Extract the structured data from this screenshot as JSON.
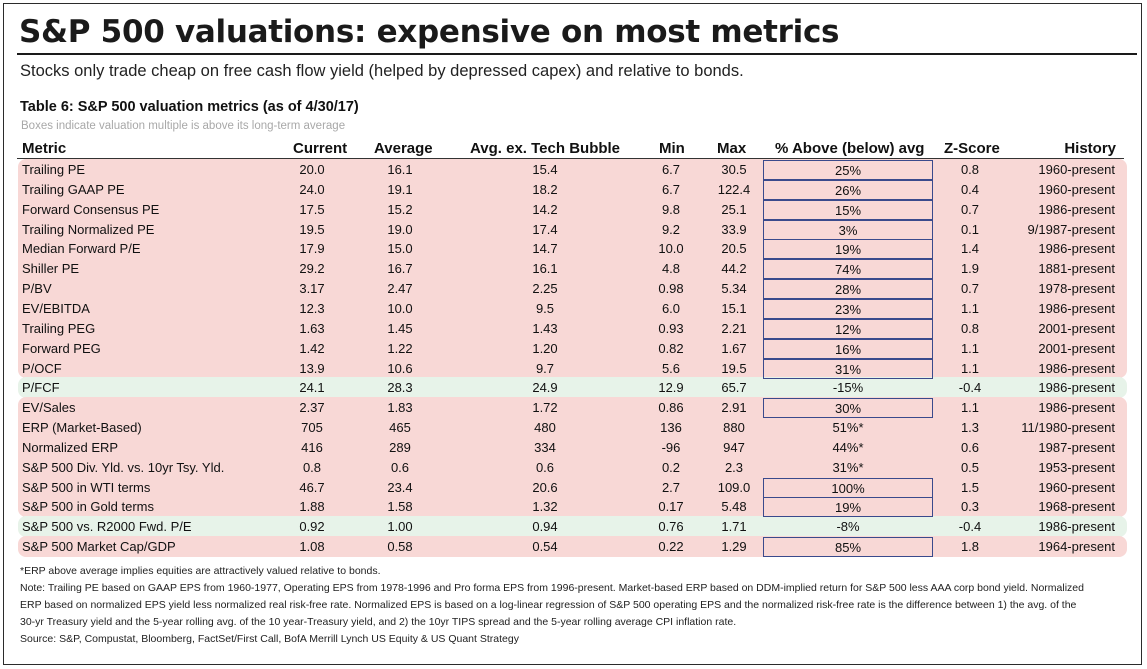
{
  "title": "S&P 500 valuations: expensive on most metrics",
  "subtitle": "Stocks only trade cheap on free cash flow yield (helped by depressed capex) and relative to bonds.",
  "table_title": "Table 6: S&P 500 valuation metrics (as of 4/30/17)",
  "table_note": "Boxes indicate valuation multiple is above its long-term average",
  "colors": {
    "pink_band": "#f8d8d6",
    "green_band": "#e7f3e9",
    "box_border": "#3a4a8c"
  },
  "headers": {
    "metric": "Metric",
    "current": "Current",
    "average": "Average",
    "avg_ex_tech": "Avg. ex. Tech Bubble",
    "min": "Min",
    "max": "Max",
    "pct": "% Above (below) avg",
    "z": "Z-Score",
    "history": "History"
  },
  "rows": [
    {
      "metric": "Trailing PE",
      "current": "20.0",
      "average": "16.1",
      "avg_ex": "15.4",
      "min": "6.7",
      "max": "30.5",
      "pct": "25%",
      "z": "0.8",
      "history": "1960-present",
      "boxed": true,
      "band": "pink"
    },
    {
      "metric": "Trailing GAAP PE",
      "current": "24.0",
      "average": "19.1",
      "avg_ex": "18.2",
      "min": "6.7",
      "max": "122.4",
      "pct": "26%",
      "z": "0.4",
      "history": "1960-present",
      "boxed": true,
      "band": "pink"
    },
    {
      "metric": "Forward Consensus PE",
      "current": "17.5",
      "average": "15.2",
      "avg_ex": "14.2",
      "min": "9.8",
      "max": "25.1",
      "pct": "15%",
      "z": "0.7",
      "history": "1986-present",
      "boxed": true,
      "band": "pink"
    },
    {
      "metric": "Trailing Normalized PE",
      "current": "19.5",
      "average": "19.0",
      "avg_ex": "17.4",
      "min": "9.2",
      "max": "33.9",
      "pct": "3%",
      "z": "0.1",
      "history": "9/1987-present",
      "boxed": true,
      "band": "pink"
    },
    {
      "metric": "Median Forward P/E",
      "current": "17.9",
      "average": "15.0",
      "avg_ex": "14.7",
      "min": "10.0",
      "max": "20.5",
      "pct": "19%",
      "z": "1.4",
      "history": "1986-present",
      "boxed": true,
      "band": "pink"
    },
    {
      "metric": "Shiller PE",
      "current": "29.2",
      "average": "16.7",
      "avg_ex": "16.1",
      "min": "4.8",
      "max": "44.2",
      "pct": "74%",
      "z": "1.9",
      "history": "1881-present",
      "boxed": true,
      "band": "pink"
    },
    {
      "metric": "P/BV",
      "current": "3.17",
      "average": "2.47",
      "avg_ex": "2.25",
      "min": "0.98",
      "max": "5.34",
      "pct": "28%",
      "z": "0.7",
      "history": "1978-present",
      "boxed": true,
      "band": "pink"
    },
    {
      "metric": "EV/EBITDA",
      "current": "12.3",
      "average": "10.0",
      "avg_ex": "9.5",
      "min": "6.0",
      "max": "15.1",
      "pct": "23%",
      "z": "1.1",
      "history": "1986-present",
      "boxed": true,
      "band": "pink"
    },
    {
      "metric": "Trailing PEG",
      "current": "1.63",
      "average": "1.45",
      "avg_ex": "1.43",
      "min": "0.93",
      "max": "2.21",
      "pct": "12%",
      "z": "0.8",
      "history": "2001-present",
      "boxed": true,
      "band": "pink"
    },
    {
      "metric": "Forward PEG",
      "current": "1.42",
      "average": "1.22",
      "avg_ex": "1.20",
      "min": "0.82",
      "max": "1.67",
      "pct": "16%",
      "z": "1.1",
      "history": "2001-present",
      "boxed": true,
      "band": "pink"
    },
    {
      "metric": "P/OCF",
      "current": "13.9",
      "average": "10.6",
      "avg_ex": "9.7",
      "min": "5.6",
      "max": "19.5",
      "pct": "31%",
      "z": "1.1",
      "history": "1986-present",
      "boxed": true,
      "band": "pink"
    },
    {
      "metric": "P/FCF",
      "current": "24.1",
      "average": "28.3",
      "avg_ex": "24.9",
      "min": "12.9",
      "max": "65.7",
      "pct": "-15%",
      "z": "-0.4",
      "history": "1986-present",
      "boxed": false,
      "band": "green"
    },
    {
      "metric": "EV/Sales",
      "current": "2.37",
      "average": "1.83",
      "avg_ex": "1.72",
      "min": "0.86",
      "max": "2.91",
      "pct": "30%",
      "z": "1.1",
      "history": "1986-present",
      "boxed": true,
      "band": "pink"
    },
    {
      "metric": "ERP (Market-Based)",
      "current": "705",
      "average": "465",
      "avg_ex": "480",
      "min": "136",
      "max": "880",
      "pct": "51%*",
      "z": "1.3",
      "history": "11/1980-present",
      "boxed": false,
      "band": "pink"
    },
    {
      "metric": "Normalized ERP",
      "current": "416",
      "average": "289",
      "avg_ex": "334",
      "min": "-96",
      "max": "947",
      "pct": "44%*",
      "z": "0.6",
      "history": "1987-present",
      "boxed": false,
      "band": "pink"
    },
    {
      "metric": "S&P 500 Div. Yld. vs. 10yr Tsy. Yld.",
      "current": "0.8",
      "average": "0.6",
      "avg_ex": "0.6",
      "min": "0.2",
      "max": "2.3",
      "pct": "31%*",
      "z": "0.5",
      "history": "1953-present",
      "boxed": false,
      "band": "pink"
    },
    {
      "metric": "S&P 500 in WTI terms",
      "current": "46.7",
      "average": "23.4",
      "avg_ex": "20.6",
      "min": "2.7",
      "max": "109.0",
      "pct": "100%",
      "z": "1.5",
      "history": "1960-present",
      "boxed": true,
      "band": "pink"
    },
    {
      "metric": "S&P 500 in Gold terms",
      "current": "1.88",
      "average": "1.58",
      "avg_ex": "1.32",
      "min": "0.17",
      "max": "5.48",
      "pct": "19%",
      "z": "0.3",
      "history": "1968-present",
      "boxed": true,
      "band": "pink"
    },
    {
      "metric": "S&P 500 vs. R2000 Fwd. P/E",
      "current": "0.92",
      "average": "1.00",
      "avg_ex": "0.94",
      "min": "0.76",
      "max": "1.71",
      "pct": "-8%",
      "z": "-0.4",
      "history": "1986-present",
      "boxed": false,
      "band": "green"
    },
    {
      "metric": "S&P 500 Market Cap/GDP",
      "current": "1.08",
      "average": "0.58",
      "avg_ex": "0.54",
      "min": "0.22",
      "max": "1.29",
      "pct": "85%",
      "z": "1.8",
      "history": "1964-present",
      "boxed": true,
      "band": "pink"
    }
  ],
  "footer": [
    "*ERP above average implies equities are attractively valued relative to bonds.",
    "Note: Trailing PE based on GAAP EPS from 1960-1977, Operating EPS from 1978-1996 and Pro forma EPS from 1996-present. Market-based ERP based on DDM-implied return for S&P 500 less AAA corp bond yield. Normalized",
    "ERP based on normalized EPS yield less normalized real risk-free rate. Normalized EPS is based on a log-linear regression of S&P 500 operating EPS and the normalized risk-free rate is the difference between 1) the avg. of the",
    "30-yr Treasury yield and the 5-year rolling avg. of the 10 year-Treasury yield, and 2) the 10yr TIPS spread and the 5-year rolling average CPI inflation rate.",
    "Source: S&P, Compustat, Bloomberg, FactSet/First Call, BofA Merrill Lynch US Equity & US Quant Strategy"
  ]
}
